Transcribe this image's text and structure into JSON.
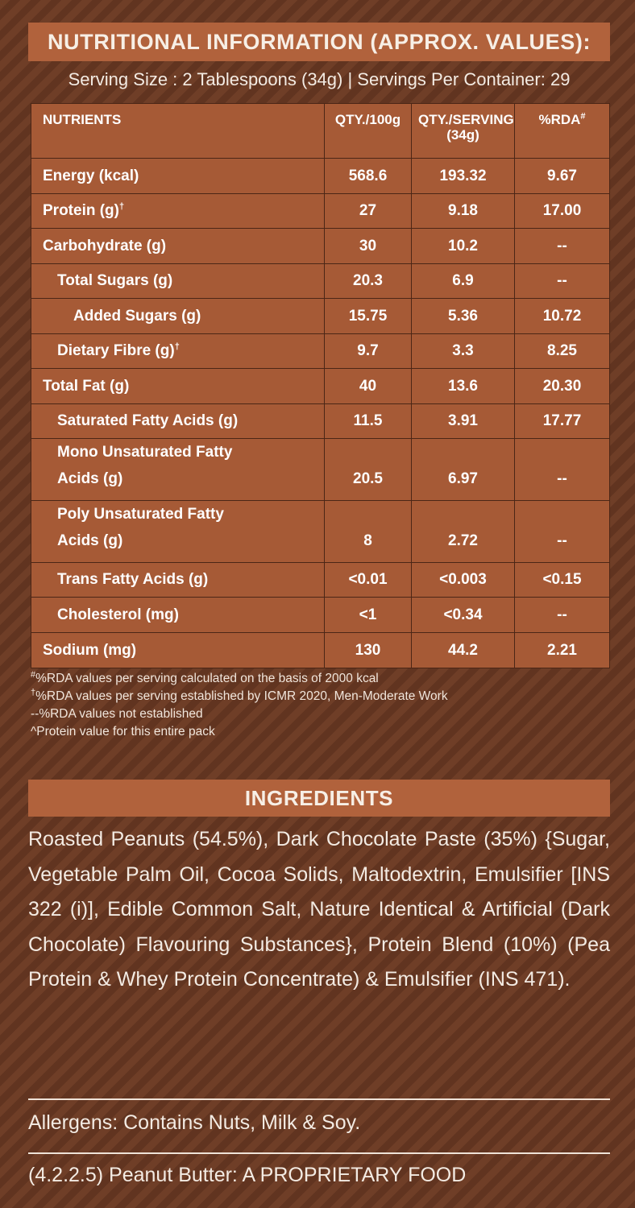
{
  "nutrition": {
    "title": "NUTRITIONAL INFORMATION (APPROX. VALUES):",
    "serving_info": "Serving Size : 2 Tablespoons (34g)  |  Servings Per Container: 29",
    "headers": {
      "nutrients": "NUTRIENTS",
      "qty_100g": "QTY./100g",
      "qty_serving_line1": "QTY./SERVING",
      "qty_serving_line2": "(34g)",
      "rda": "%RDA",
      "rda_mark": "#"
    },
    "rows": [
      {
        "name": "Energy (kcal)",
        "mark": "",
        "qty_100g": "568.6",
        "qty_serving": "193.32",
        "rda": "9.67"
      },
      {
        "name": "Protein (g)",
        "mark": "†",
        "qty_100g": "27",
        "qty_serving": "9.18",
        "rda": "17.00"
      },
      {
        "name": "Carbohydrate (g)",
        "mark": "",
        "qty_100g": "30",
        "qty_serving": "10.2",
        "rda": "--"
      },
      {
        "name": "Total Sugars (g)",
        "mark": "",
        "qty_100g": "20.3",
        "qty_serving": "6.9",
        "rda": "--"
      },
      {
        "name": "Added Sugars (g)",
        "mark": "",
        "qty_100g": "15.75",
        "qty_serving": "5.36",
        "rda": "10.72"
      },
      {
        "name": "Dietary Fibre (g)",
        "mark": "†",
        "qty_100g": "9.7",
        "qty_serving": "3.3",
        "rda": "8.25"
      },
      {
        "name": "Total Fat (g)",
        "mark": "",
        "qty_100g": "40",
        "qty_serving": "13.6",
        "rda": "20.30"
      },
      {
        "name": "Saturated Fatty Acids (g)",
        "mark": "",
        "qty_100g": "11.5",
        "qty_serving": "3.91",
        "rda": "17.77"
      },
      {
        "name_line1": "Mono Unsaturated Fatty",
        "name_line2": "Acids (g)",
        "qty_100g": "20.5",
        "qty_serving": "6.97",
        "rda": "--"
      },
      {
        "name_line1": "Poly Unsaturated Fatty",
        "name_line2": "Acids (g)",
        "qty_100g": "8",
        "qty_serving": "2.72",
        "rda": "--"
      },
      {
        "name": "Trans Fatty Acids (g)",
        "mark": "",
        "qty_100g": "<0.01",
        "qty_serving": "<0.003",
        "rda": "<0.15"
      },
      {
        "name": "Cholesterol (mg)",
        "mark": "",
        "qty_100g": "<1",
        "qty_serving": "<0.34",
        "rda": "--"
      },
      {
        "name": "Sodium (mg)",
        "mark": "",
        "qty_100g": "130",
        "qty_serving": "44.2",
        "rda": "2.21"
      }
    ],
    "footnotes": [
      {
        "mark": "#",
        "text": "%RDA values per serving calculated on the basis of 2000 kcal"
      },
      {
        "mark": "†",
        "text": "%RDA values per serving established by ICMR 2020, Men-Moderate Work"
      },
      {
        "mark": "",
        "text": "--%RDA values not established"
      },
      {
        "mark": "",
        "text": "^Protein value for this entire pack"
      }
    ]
  },
  "ingredients": {
    "title": "INGREDIENTS",
    "text": "Roasted Peanuts (54.5%), Dark Chocolate Paste (35%) {Sugar, Vegetable Palm Oil, Cocoa Solids, Maltodextrin, Emulsifier [INS 322 (i)], Edible Common Salt, Nature Identical & Artificial (Dark Chocolate) Flavouring Substances}, Protein Blend (10%) (Pea Protein & Whey Protein Concentrate) & Emulsifier (INS 471)."
  },
  "allergens": "Allergens: Contains Nuts, Milk & Soy.",
  "footer": "(4.2.2.5) Peanut Butter: A PROPRIETARY FOOD",
  "colors": {
    "background": "#6b3a24",
    "header_bar": "#b1623c",
    "table_fill": "#a65a36",
    "grid_line": "#4b2616"
  }
}
